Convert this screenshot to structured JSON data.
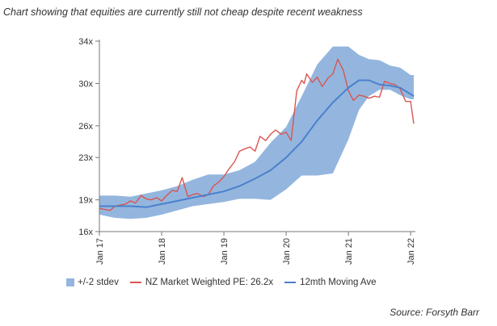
{
  "caption": "Chart showing that equities are currently still not cheap despite recent weakness",
  "source": "Source: Forsyth Barr",
  "colors": {
    "band": "#94b6de",
    "pe": "#d9554f",
    "ma": "#4a80cc",
    "axis": "#777777"
  },
  "chart_data": {
    "type": "line",
    "ylim": [
      16,
      34
    ],
    "y_ticks": [
      {
        "value": 16,
        "label": "16x"
      },
      {
        "value": 19,
        "label": "19x"
      },
      {
        "value": 23,
        "label": "23x"
      },
      {
        "value": 26,
        "label": "26x"
      },
      {
        "value": 30,
        "label": "30x"
      },
      {
        "value": 34,
        "label": "34x"
      }
    ],
    "xlim": [
      2017.0,
      2022.05
    ],
    "x_ticks": [
      {
        "value": 2017,
        "label": "Jan 17"
      },
      {
        "value": 2018,
        "label": "Jan 18"
      },
      {
        "value": 2019,
        "label": "Jan 19"
      },
      {
        "value": 2020,
        "label": "Jan 20"
      },
      {
        "value": 2021,
        "label": "Jan 21"
      },
      {
        "value": 2022,
        "label": "Jan 22"
      }
    ],
    "legend": [
      {
        "key": "band",
        "label": "+/-2 stdev"
      },
      {
        "key": "pe",
        "label": "NZ Market Weighted PE: 26.2x"
      },
      {
        "key": "ma",
        "label": "12mth Moving Ave"
      }
    ],
    "band": {
      "x": [
        2017.0,
        2017.25,
        2017.5,
        2017.75,
        2018.0,
        2018.25,
        2018.5,
        2018.75,
        2019.0,
        2019.25,
        2019.5,
        2019.75,
        2020.0,
        2020.25,
        2020.5,
        2020.75,
        2021.0,
        2021.17,
        2021.33,
        2021.5,
        2021.67,
        2021.83,
        2022.0,
        2022.05
      ],
      "upper": [
        19.4,
        19.4,
        19.3,
        19.6,
        19.9,
        20.3,
        20.9,
        21.4,
        21.4,
        21.8,
        22.6,
        24.4,
        25.9,
        28.8,
        31.8,
        33.5,
        33.5,
        32.7,
        32.3,
        32.2,
        31.7,
        31.5,
        30.8,
        30.8
      ],
      "lower": [
        17.6,
        17.3,
        17.2,
        17.3,
        17.6,
        18.0,
        18.4,
        18.6,
        18.8,
        19.1,
        19.1,
        19.0,
        20.0,
        21.3,
        21.3,
        21.5,
        24.7,
        27.5,
        28.8,
        29.4,
        29.4,
        28.9,
        28.5,
        28.5
      ]
    },
    "series": [
      {
        "key": "pe",
        "name": "NZ Market Weighted PE: 26.2x",
        "x": [
          2017.0,
          2017.08,
          2017.17,
          2017.25,
          2017.33,
          2017.42,
          2017.5,
          2017.58,
          2017.67,
          2017.75,
          2017.83,
          2017.92,
          2018.0,
          2018.08,
          2018.17,
          2018.25,
          2018.33,
          2018.42,
          2018.5,
          2018.58,
          2018.67,
          2018.75,
          2018.83,
          2018.92,
          2019.0,
          2019.08,
          2019.17,
          2019.25,
          2019.33,
          2019.42,
          2019.5,
          2019.58,
          2019.67,
          2019.75,
          2019.83,
          2019.92,
          2020.0,
          2020.08,
          2020.17,
          2020.25,
          2020.29,
          2020.33,
          2020.42,
          2020.5,
          2020.58,
          2020.67,
          2020.75,
          2020.83,
          2020.92,
          2021.0,
          2021.08,
          2021.17,
          2021.25,
          2021.33,
          2021.42,
          2021.5,
          2021.58,
          2021.67,
          2021.75,
          2021.83,
          2021.92,
          2022.0,
          2022.05
        ],
        "y": [
          18.2,
          18.1,
          18.0,
          18.4,
          18.5,
          18.6,
          18.9,
          18.7,
          19.4,
          19.1,
          19.0,
          19.2,
          18.9,
          19.4,
          19.9,
          19.8,
          21.1,
          19.3,
          19.5,
          19.6,
          19.3,
          19.5,
          20.3,
          20.7,
          21.2,
          21.9,
          22.6,
          23.6,
          23.8,
          24.0,
          23.6,
          25.0,
          24.6,
          25.2,
          25.6,
          25.2,
          25.4,
          24.6,
          29.3,
          30.3,
          30.0,
          30.9,
          30.1,
          30.6,
          29.7,
          30.5,
          30.9,
          32.3,
          31.2,
          29.3,
          28.4,
          28.9,
          28.8,
          28.6,
          28.8,
          28.7,
          30.2,
          30.0,
          29.9,
          29.5,
          28.3,
          28.3,
          26.2
        ]
      },
      {
        "key": "ma",
        "name": "12mth Moving Ave",
        "x": [
          2017.0,
          2017.25,
          2017.5,
          2017.75,
          2018.0,
          2018.25,
          2018.5,
          2018.75,
          2019.0,
          2019.25,
          2019.5,
          2019.75,
          2020.0,
          2020.25,
          2020.5,
          2020.75,
          2021.0,
          2021.17,
          2021.33,
          2021.5,
          2021.67,
          2021.83,
          2022.0,
          2022.05
        ],
        "y": [
          18.4,
          18.4,
          18.4,
          18.3,
          18.6,
          18.9,
          19.2,
          19.5,
          19.8,
          20.3,
          21.0,
          21.8,
          23.0,
          24.5,
          26.5,
          28.2,
          29.6,
          30.3,
          30.3,
          29.9,
          29.8,
          29.6,
          29.0,
          28.8
        ]
      }
    ]
  }
}
